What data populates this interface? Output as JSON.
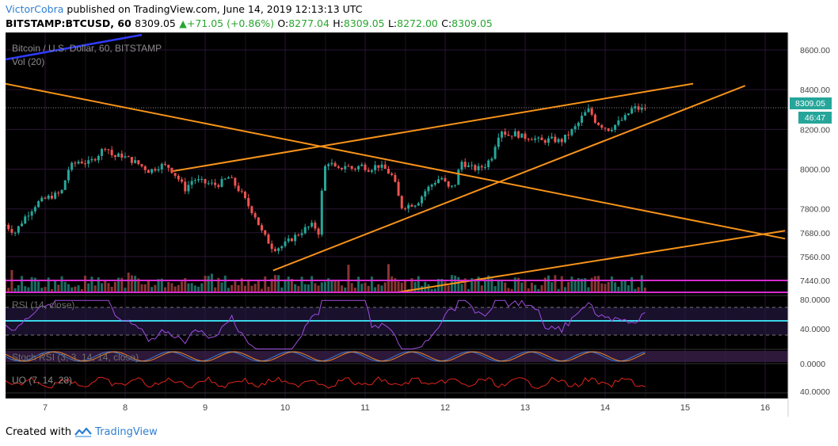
{
  "header": {
    "author": "VictorCobra",
    "published_text": "published on TradingView.com, June 14, 2019 12:13:13 UTC",
    "symbol": "BITSTAMP:BTCUSD, 60",
    "last": "8309.05",
    "change": "+71.05 (+0.86%)",
    "o_label": "O:",
    "o_value": "8277.04",
    "h_label": "H:",
    "h_value": "8309.05",
    "l_label": "L:",
    "l_value": "8272.00",
    "c_label": "C:",
    "c_value": "8309.05"
  },
  "legend": {
    "main": "Bitcoin / U.S. Dollar, 60, BITSTAMP",
    "vol": "Vol (20)",
    "rsi": "RSI (14, close)",
    "stoch": "Stoch RSI (3, 3, 14, 14, close)",
    "uo": "UO (7, 14, 28)"
  },
  "price_badge": "8309.05",
  "countdown_badge": "46:47",
  "footer": {
    "created_with": "Created with",
    "brand": "TradingView"
  },
  "colors": {
    "background": "#000000",
    "bull": "#26a69a",
    "bear": "#ef5350",
    "trendline": "#f7931a",
    "magenta": "#d52bd0",
    "rsi_band": "#2a1a4a",
    "rsi_line": "#a04de0",
    "cyan": "#3ad6e8",
    "stoch_k": "#3a7bd5",
    "stoch_d": "#f08a2a",
    "uo": "#e0241c"
  },
  "chart_data": {
    "type": "candlestick",
    "x_tick_labels": [
      "7",
      "8",
      "9",
      "10",
      "11",
      "12",
      "13",
      "14",
      "15",
      "16"
    ],
    "y_ticks": [
      8600,
      8400,
      8200,
      8000,
      7800,
      7680,
      7560,
      7440
    ],
    "y_tick_labels": [
      "8600.00",
      "8400.00",
      "8200.00",
      "8000.00",
      "7800.00",
      "7680.00",
      "7560.00",
      "7440.00"
    ],
    "ylim": [
      7380,
      8680
    ],
    "last_price": 8309.05,
    "price_path": [
      [
        6.5,
        7720
      ],
      [
        6.62,
        7680
      ],
      [
        6.75,
        7760
      ],
      [
        6.9,
        7830
      ],
      [
        7.05,
        7860
      ],
      [
        7.2,
        7880
      ],
      [
        7.3,
        8010
      ],
      [
        7.42,
        8040
      ],
      [
        7.55,
        8030
      ],
      [
        7.68,
        8080
      ],
      [
        7.76,
        8120
      ],
      [
        7.85,
        8060
      ],
      [
        7.95,
        8070
      ],
      [
        8.05,
        8050
      ],
      [
        8.15,
        8030
      ],
      [
        8.3,
        7990
      ],
      [
        8.45,
        8020
      ],
      [
        8.55,
        8010
      ],
      [
        8.65,
        7960
      ],
      [
        8.75,
        7900
      ],
      [
        8.85,
        7950
      ],
      [
        9.0,
        7930
      ],
      [
        9.15,
        7920
      ],
      [
        9.3,
        7960
      ],
      [
        9.45,
        7880
      ],
      [
        9.55,
        7810
      ],
      [
        9.62,
        7770
      ],
      [
        9.7,
        7690
      ],
      [
        9.78,
        7640
      ],
      [
        9.85,
        7600
      ],
      [
        9.95,
        7610
      ],
      [
        10.05,
        7640
      ],
      [
        10.15,
        7670
      ],
      [
        10.25,
        7700
      ],
      [
        10.35,
        7720
      ],
      [
        10.42,
        7680
      ],
      [
        10.48,
        8000
      ],
      [
        10.55,
        8040
      ],
      [
        10.65,
        7990
      ],
      [
        10.75,
        8020
      ],
      [
        10.85,
        8000
      ],
      [
        10.95,
        8020
      ],
      [
        11.05,
        8000
      ],
      [
        11.15,
        8020
      ],
      [
        11.25,
        8000
      ],
      [
        11.35,
        7960
      ],
      [
        11.45,
        7810
      ],
      [
        11.55,
        7820
      ],
      [
        11.65,
        7830
      ],
      [
        11.75,
        7890
      ],
      [
        11.85,
        7930
      ],
      [
        11.95,
        7960
      ],
      [
        12.05,
        7900
      ],
      [
        12.12,
        7920
      ],
      [
        12.2,
        8040
      ],
      [
        12.3,
        8010
      ],
      [
        12.4,
        8000
      ],
      [
        12.5,
        8020
      ],
      [
        12.58,
        8060
      ],
      [
        12.65,
        8160
      ],
      [
        12.7,
        8200
      ],
      [
        12.78,
        8170
      ],
      [
        12.88,
        8180
      ],
      [
        12.98,
        8160
      ],
      [
        13.08,
        8160
      ],
      [
        13.2,
        8140
      ],
      [
        13.32,
        8150
      ],
      [
        13.45,
        8140
      ],
      [
        13.55,
        8180
      ],
      [
        13.65,
        8220
      ],
      [
        13.72,
        8270
      ],
      [
        13.8,
        8300
      ],
      [
        13.88,
        8240
      ],
      [
        13.95,
        8220
      ],
      [
        14.05,
        8200
      ],
      [
        14.15,
        8230
      ],
      [
        14.25,
        8260
      ],
      [
        14.35,
        8310
      ],
      [
        14.45,
        8300
      ],
      [
        14.5,
        8309.05
      ]
    ],
    "trendlines": [
      {
        "name": "descending",
        "from": [
          6.5,
          8430
        ],
        "to": [
          16.25,
          7650
        ]
      },
      {
        "name": "wedge-upper",
        "from": [
          8.6,
          7990
        ],
        "to": [
          15.1,
          8430
        ]
      },
      {
        "name": "wedge-lower",
        "from": [
          9.85,
          7490
        ],
        "to": [
          15.75,
          8420
        ]
      },
      {
        "name": "long-support",
        "from": [
          11.4,
          7380
        ],
        "to": [
          16.25,
          7690
        ]
      }
    ],
    "indicators": {
      "rsi_levels": [
        80,
        40
      ],
      "rsi_level_labels": [
        "80.0000",
        "40.0000"
      ],
      "stoch_level_labels": [
        "0.0000"
      ],
      "uo_level_labels": [
        "40.0000"
      ]
    }
  }
}
